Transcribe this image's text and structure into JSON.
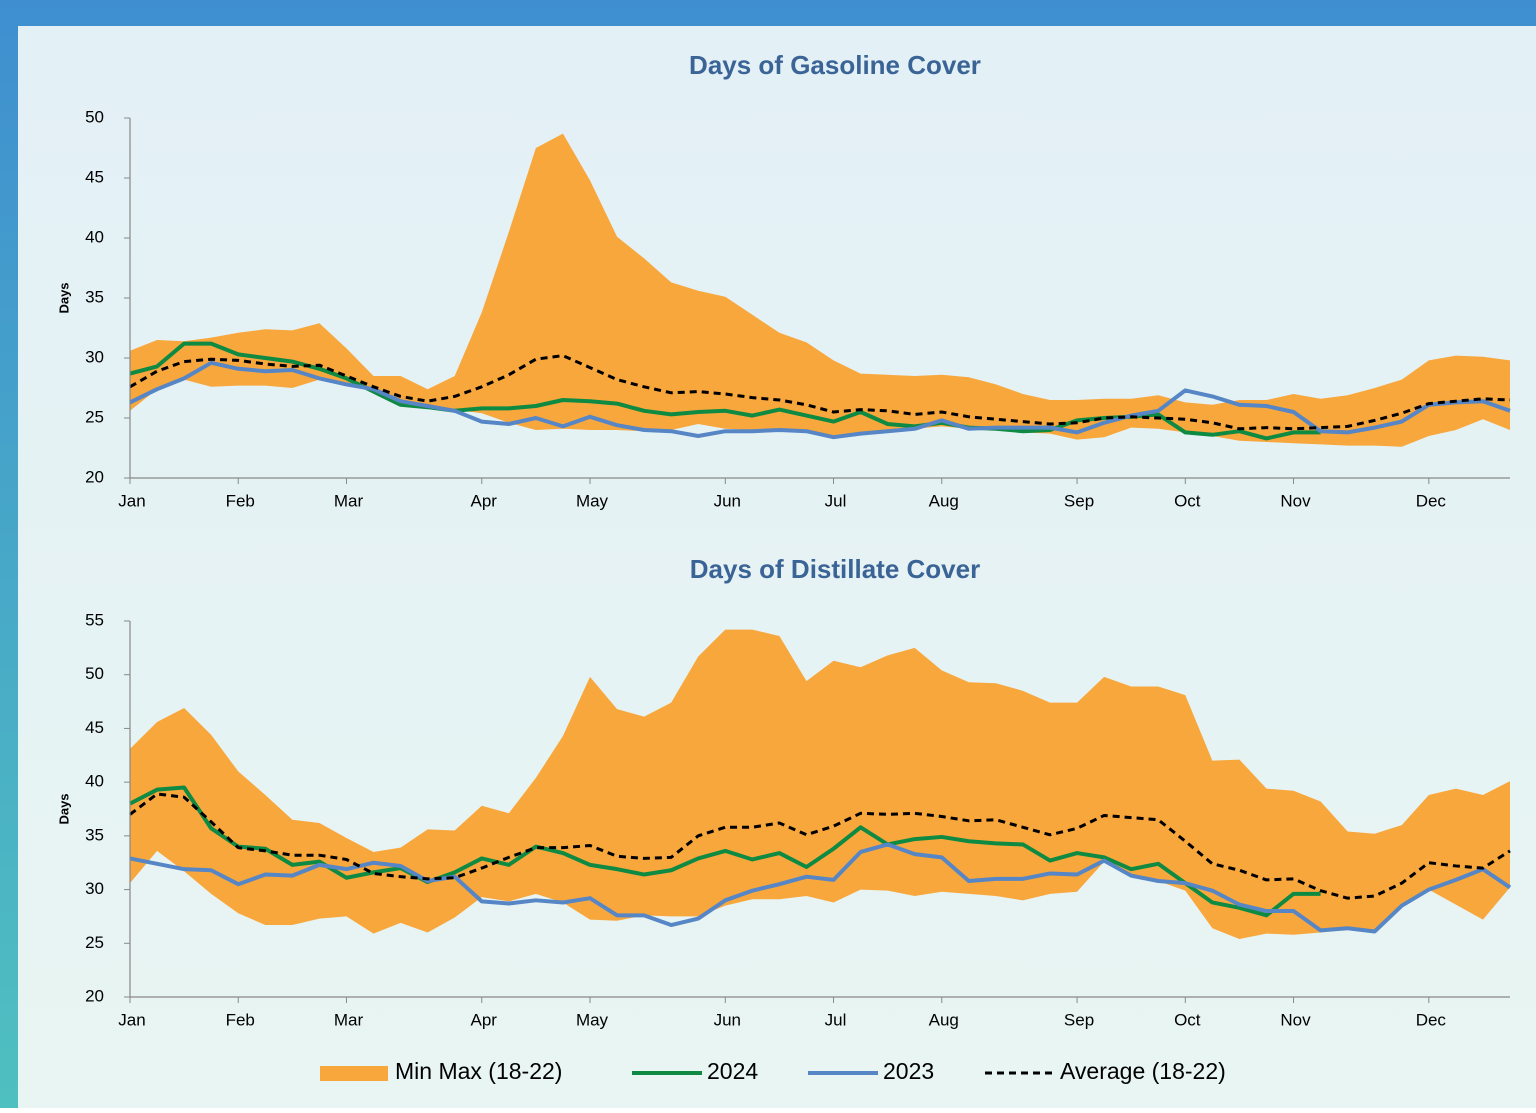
{
  "chart_data": [
    {
      "type": "band-line",
      "title": "Days of Gasoline Cover",
      "y_label": "Days",
      "grid": false,
      "categories": [
        "Jan",
        null,
        null,
        null,
        "Feb",
        null,
        null,
        null,
        "Mar",
        null,
        null,
        null,
        null,
        "Apr",
        null,
        null,
        null,
        "May",
        null,
        null,
        null,
        null,
        "Jun",
        null,
        null,
        null,
        "Jul",
        null,
        null,
        null,
        "Aug",
        null,
        null,
        null,
        null,
        "Sep",
        null,
        null,
        null,
        "Oct",
        null,
        null,
        null,
        "Nov",
        null,
        null,
        null,
        null,
        "Dec",
        null,
        null,
        null
      ],
      "ylim": [
        20,
        50
      ],
      "yticks": [
        20,
        25,
        30,
        35,
        40,
        45,
        50
      ],
      "series": [
        {
          "kind": "band",
          "color": "#f8a73c",
          "low": [
            25.6,
            27.4,
            28.2,
            27.6,
            27.7,
            27.7,
            27.5,
            28.2,
            27.8,
            27.2,
            26.1,
            25.8,
            25.7,
            25.4,
            24.6,
            24.0,
            24.1,
            24.0,
            24.0,
            23.9,
            24.0,
            24.5,
            24.1,
            24.0,
            24.0,
            24.0,
            23.4,
            23.6,
            23.9,
            24.1,
            24.3,
            24.1,
            24.0,
            23.8,
            23.7,
            23.2,
            23.4,
            24.2,
            24.1,
            23.8,
            23.5,
            23.1,
            23.0,
            22.9,
            22.8,
            22.7,
            22.7,
            22.6,
            23.5,
            24.0,
            24.9,
            24.0
          ],
          "high": [
            30.6,
            31.5,
            31.4,
            31.7,
            32.1,
            32.4,
            32.3,
            32.9,
            30.8,
            28.5,
            28.5,
            27.4,
            28.5,
            33.8,
            40.5,
            47.5,
            48.7,
            44.8,
            40.1,
            38.3,
            36.3,
            35.6,
            35.1,
            33.6,
            32.1,
            31.3,
            29.8,
            28.7,
            28.6,
            28.5,
            28.6,
            28.4,
            27.8,
            27.0,
            26.5,
            26.5,
            26.6,
            26.6,
            26.9,
            26.3,
            26.1,
            26.5,
            26.5,
            27.0,
            26.6,
            26.9,
            27.5,
            28.2,
            29.8,
            30.2,
            30.1,
            29.8
          ]
        },
        {
          "kind": "line",
          "color": "#0e8a43",
          "values": [
            28.7,
            29.3,
            31.2,
            31.2,
            30.3,
            30.0,
            29.7,
            29.1,
            28.3,
            27.2,
            26.1,
            25.9,
            25.6,
            25.8,
            25.8,
            26.0,
            26.5,
            26.4,
            26.2,
            25.6,
            25.3,
            25.5,
            25.6,
            25.2,
            25.7,
            25.2,
            24.7,
            25.5,
            24.5,
            24.3,
            24.6,
            24.2,
            24.1,
            23.9,
            24.0,
            24.8,
            25.0,
            25.1,
            25.3,
            23.8,
            23.6,
            23.9,
            23.3,
            23.8,
            23.8,
            null,
            null,
            null,
            null,
            null,
            null,
            null
          ]
        },
        {
          "kind": "line",
          "color": "#5686c5",
          "values": [
            26.3,
            27.4,
            28.3,
            29.6,
            29.1,
            28.9,
            29.0,
            28.3,
            27.8,
            27.4,
            26.4,
            26.0,
            25.6,
            24.7,
            24.5,
            25.0,
            24.3,
            25.1,
            24.4,
            24.0,
            23.9,
            23.5,
            23.9,
            23.9,
            24.0,
            23.9,
            23.4,
            23.7,
            23.9,
            24.1,
            24.8,
            24.1,
            24.2,
            24.2,
            24.2,
            23.8,
            24.6,
            25.2,
            25.6,
            27.3,
            26.8,
            26.1,
            26.0,
            25.5,
            23.9,
            23.8,
            24.2,
            24.7,
            26.1,
            26.3,
            26.4,
            25.6
          ]
        },
        {
          "kind": "line",
          "color": "#000000",
          "dashed": true,
          "values": [
            27.6,
            28.9,
            29.7,
            29.9,
            29.8,
            29.5,
            29.3,
            29.4,
            28.5,
            27.6,
            26.8,
            26.4,
            26.8,
            27.6,
            28.6,
            29.9,
            30.2,
            29.2,
            28.2,
            27.6,
            27.1,
            27.2,
            27.0,
            26.7,
            26.5,
            26.1,
            25.5,
            25.7,
            25.6,
            25.3,
            25.5,
            25.1,
            24.9,
            24.7,
            24.5,
            24.6,
            25.0,
            25.1,
            25.0,
            24.9,
            24.6,
            24.1,
            24.2,
            24.1,
            24.2,
            24.3,
            24.8,
            25.4,
            26.2,
            26.4,
            26.6,
            26.5
          ]
        }
      ]
    },
    {
      "type": "band-line",
      "title": "Days of Distillate Cover",
      "y_label": "Days",
      "grid": false,
      "categories": [
        "Jan",
        null,
        null,
        null,
        "Feb",
        null,
        null,
        null,
        "Mar",
        null,
        null,
        null,
        null,
        "Apr",
        null,
        null,
        null,
        "May",
        null,
        null,
        null,
        null,
        "Jun",
        null,
        null,
        null,
        "Jul",
        null,
        null,
        null,
        "Aug",
        null,
        null,
        null,
        null,
        "Sep",
        null,
        null,
        null,
        "Oct",
        null,
        null,
        null,
        "Nov",
        null,
        null,
        null,
        null,
        "Dec",
        null,
        null,
        null
      ],
      "ylim": [
        20,
        55
      ],
      "yticks": [
        20,
        25,
        30,
        35,
        40,
        45,
        50,
        55
      ],
      "series": [
        {
          "name": "Min Max (18-22)",
          "kind": "band",
          "color": "#f8a73c",
          "low": [
            30.6,
            33.6,
            31.7,
            29.6,
            27.8,
            26.7,
            26.7,
            27.3,
            27.5,
            25.9,
            26.9,
            26.0,
            27.4,
            29.3,
            28.9,
            29.6,
            28.8,
            27.2,
            27.1,
            27.6,
            27.5,
            27.5,
            28.5,
            29.1,
            29.1,
            29.4,
            28.8,
            30.0,
            29.9,
            29.4,
            29.8,
            29.6,
            29.4,
            29.0,
            29.6,
            29.8,
            32.6,
            31.4,
            30.8,
            29.9,
            26.4,
            25.4,
            25.9,
            25.8,
            26.0,
            26.3,
            26.1,
            28.4,
            30.0,
            28.6,
            27.2,
            30.2
          ],
          "high": [
            43.1,
            45.6,
            46.9,
            44.4,
            41.0,
            38.8,
            36.5,
            36.2,
            34.8,
            33.5,
            33.9,
            35.6,
            35.5,
            37.8,
            37.1,
            40.4,
            44.3,
            49.8,
            46.8,
            46.1,
            47.4,
            51.7,
            54.2,
            54.2,
            53.6,
            49.4,
            51.3,
            50.7,
            51.8,
            52.5,
            50.4,
            49.3,
            49.2,
            48.5,
            47.4,
            47.4,
            49.8,
            48.9,
            48.9,
            48.1,
            42.0,
            42.1,
            39.4,
            39.2,
            38.2,
            35.4,
            35.2,
            36.0,
            38.8,
            39.4,
            38.8,
            40.1
          ]
        },
        {
          "name": "2024",
          "kind": "line",
          "color": "#0e8a43",
          "values": [
            38.0,
            39.3,
            39.5,
            35.7,
            34.0,
            33.8,
            32.3,
            32.6,
            31.1,
            31.6,
            32.0,
            30.7,
            31.6,
            32.9,
            32.3,
            34.0,
            33.4,
            32.3,
            31.9,
            31.4,
            31.8,
            32.9,
            33.6,
            32.8,
            33.4,
            32.1,
            33.8,
            35.8,
            34.2,
            34.7,
            34.9,
            34.5,
            34.3,
            34.2,
            32.7,
            33.4,
            33.0,
            31.9,
            32.4,
            30.6,
            28.8,
            28.3,
            27.6,
            29.6,
            29.6,
            null,
            null,
            null,
            null,
            null,
            null,
            null
          ]
        },
        {
          "name": "2023",
          "kind": "line",
          "color": "#5686c5",
          "values": [
            32.9,
            32.4,
            31.9,
            31.8,
            30.5,
            31.4,
            31.3,
            32.3,
            31.9,
            32.5,
            32.2,
            30.8,
            31.2,
            28.9,
            28.7,
            29.0,
            28.8,
            29.2,
            27.6,
            27.6,
            26.7,
            27.3,
            29.0,
            29.9,
            30.5,
            31.2,
            30.9,
            33.5,
            34.2,
            33.3,
            33.0,
            30.8,
            31.0,
            31.0,
            31.5,
            31.4,
            32.7,
            31.3,
            30.8,
            30.6,
            29.9,
            28.6,
            28.0,
            28.0,
            26.2,
            26.4,
            26.1,
            28.5,
            30.0,
            30.9,
            31.9,
            30.2
          ]
        },
        {
          "name": "Average (18-22)",
          "kind": "line",
          "color": "#000000",
          "dashed": true,
          "values": [
            37.0,
            38.9,
            38.6,
            36.3,
            33.9,
            33.6,
            33.2,
            33.2,
            32.8,
            31.5,
            31.2,
            31.0,
            31.1,
            32.0,
            33.0,
            33.9,
            33.9,
            34.1,
            33.1,
            32.9,
            33.0,
            35.0,
            35.8,
            35.8,
            36.2,
            35.1,
            35.9,
            37.1,
            37.0,
            37.1,
            36.8,
            36.4,
            36.5,
            35.8,
            35.1,
            35.7,
            36.9,
            36.7,
            36.5,
            34.5,
            32.4,
            31.8,
            30.9,
            31.0,
            29.9,
            29.2,
            29.4,
            30.6,
            32.5,
            32.2,
            32.0,
            33.6
          ]
        }
      ]
    }
  ]
}
